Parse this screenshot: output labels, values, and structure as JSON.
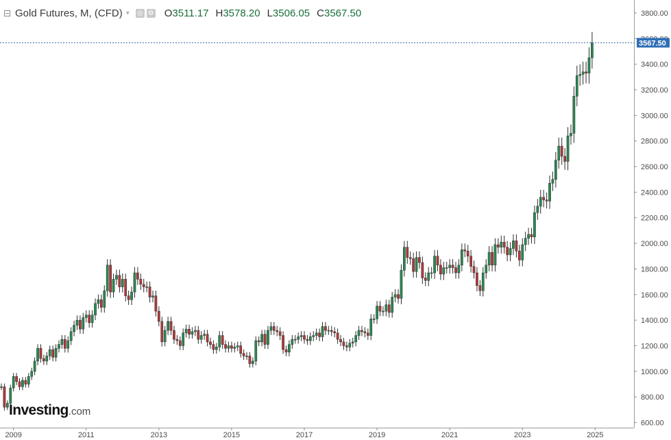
{
  "header": {
    "symbol": "Gold Futures, M, (CFD)",
    "open_label": "O",
    "open": "3511.17",
    "high_label": "H",
    "high": "3578.20",
    "low_label": "L",
    "low": "3506.05",
    "close_label": "C",
    "close": "3567.50"
  },
  "logo": {
    "name": "Investing",
    "suffix": ".com"
  },
  "colors": {
    "up": "#2a8a52",
    "down": "#b23a3a",
    "wick": "#2b2b2b",
    "axis": "#8a8a8a",
    "last_price_bg": "#2f6fb6",
    "last_price_line": "#3a63a8"
  },
  "chart_data": {
    "type": "candlestick",
    "interval": "monthly",
    "x_tick_labels": [
      "2009",
      "2011",
      "2013",
      "2015",
      "2017",
      "2019",
      "2021",
      "2023",
      "2025"
    ],
    "y_tick_labels": [
      "600.00",
      "800.00",
      "1000.00",
      "1200.00",
      "1400.00",
      "1600.00",
      "1800.00",
      "2000.00",
      "2200.00",
      "2400.00",
      "2600.00",
      "2800.00",
      "3000.00",
      "3200.00",
      "3400.00",
      "3600.00",
      "3800.00"
    ],
    "ylim": [
      560,
      3880
    ],
    "x_start": "2008-09",
    "last_price_label": "3567.50",
    "last_price": 3567.5,
    "grid": false,
    "closes": [
      880,
      720,
      750,
      870,
      960,
      920,
      880,
      930,
      900,
      960,
      1000,
      1080,
      1180,
      1100,
      1080,
      1120,
      1170,
      1110,
      1180,
      1210,
      1250,
      1180,
      1240,
      1310,
      1360,
      1400,
      1330,
      1420,
      1440,
      1380,
      1440,
      1530,
      1560,
      1500,
      1630,
      1830,
      1620,
      1720,
      1750,
      1660,
      1720,
      1590,
      1560,
      1620,
      1770,
      1720,
      1680,
      1660,
      1660,
      1580,
      1590,
      1470,
      1390,
      1230,
      1320,
      1390,
      1320,
      1250,
      1240,
      1200,
      1300,
      1330,
      1290,
      1310,
      1320,
      1250,
      1280,
      1290,
      1230,
      1210,
      1170,
      1190,
      1280,
      1210,
      1180,
      1200,
      1180,
      1190,
      1200,
      1140,
      1120,
      1120,
      1060,
      1080,
      1240,
      1230,
      1290,
      1210,
      1320,
      1350,
      1320,
      1310,
      1280,
      1170,
      1150,
      1210,
      1250,
      1250,
      1270,
      1280,
      1250,
      1240,
      1270,
      1280,
      1300,
      1270,
      1350,
      1320,
      1320,
      1310,
      1300,
      1250,
      1230,
      1200,
      1190,
      1220,
      1230,
      1280,
      1320,
      1310,
      1300,
      1280,
      1410,
      1410,
      1510,
      1470,
      1470,
      1520,
      1460,
      1580,
      1600,
      1570,
      1790,
      1970,
      1890,
      1880,
      1780,
      1890,
      1850,
      1730,
      1710,
      1770,
      1770,
      1900,
      1830,
      1760,
      1810,
      1810,
      1830,
      1810,
      1770,
      1830,
      1950,
      1940,
      1900,
      1820,
      1770,
      1670,
      1630,
      1770,
      1830,
      1930,
      1830,
      1990,
      1970,
      2010,
      1970,
      1910,
      1960,
      2020,
      1940,
      1870,
      1990,
      2040,
      2070,
      2050,
      2240,
      2290,
      2360,
      2340,
      2330,
      2470,
      2500,
      2650,
      2760,
      2680,
      2640,
      2840,
      2860,
      3150,
      3310,
      3320,
      3340,
      3330,
      3450,
      3567.5
    ]
  }
}
